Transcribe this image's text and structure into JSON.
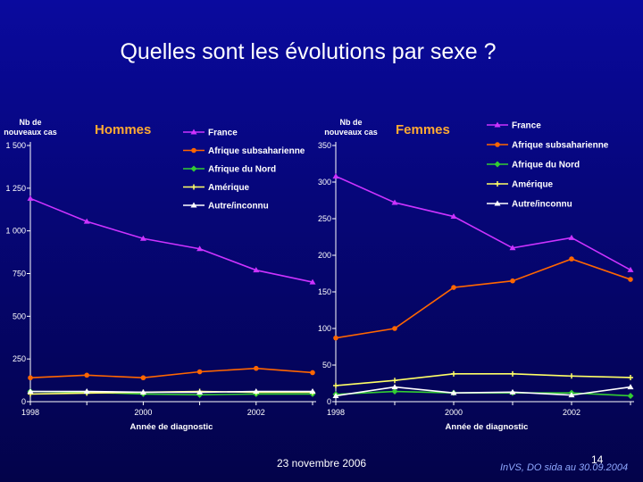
{
  "slide": {
    "title": "Quelles sont les évolutions par sexe ?",
    "footer_date": "23 novembre 2006",
    "page_number": "14",
    "source": "InVS, DO sida au 30.09.2004"
  },
  "chart_data": [
    {
      "type": "line",
      "title": "Hommes",
      "ylabel": "Nb de nouveaux cas",
      "xlabel": "Année de diagnostic",
      "x": [
        1998,
        1999,
        2000,
        2001,
        2002,
        2003
      ],
      "x_tick_labels": [
        "1998",
        "2000",
        "2002"
      ],
      "x_tick_values": [
        1998,
        2000,
        2002
      ],
      "ylim": [
        0,
        1500
      ],
      "y_ticks": [
        0,
        250,
        500,
        750,
        1000,
        1250,
        1500
      ],
      "y_tick_labels": [
        "0",
        "250",
        "500",
        "750",
        "1 000",
        "1 250",
        "1 500"
      ],
      "grid": false,
      "legend_position": "right",
      "series": [
        {
          "name": "France",
          "color": "#cc33ff",
          "values": [
            1190,
            1055,
            955,
            895,
            770,
            700
          ]
        },
        {
          "name": "Afrique subsaharienne",
          "color": "#ff6600",
          "values": [
            140,
            155,
            140,
            175,
            195,
            170
          ]
        },
        {
          "name": "Afrique du Nord",
          "color": "#33cc33",
          "values": [
            60,
            55,
            45,
            40,
            45,
            45
          ]
        },
        {
          "name": "Amérique",
          "color": "#ffff66",
          "values": [
            45,
            50,
            55,
            60,
            55,
            55
          ]
        },
        {
          "name": "Autre/inconnu",
          "color": "#ffffff",
          "values": [
            60,
            60,
            55,
            55,
            60,
            60
          ]
        }
      ]
    },
    {
      "type": "line",
      "title": "Femmes",
      "ylabel": "Nb de nouveaux cas",
      "xlabel": "Année de diagnostic",
      "x": [
        1998,
        1999,
        2000,
        2001,
        2002,
        2003
      ],
      "x_tick_labels": [
        "1998",
        "2000",
        "2002"
      ],
      "x_tick_values": [
        1998,
        2000,
        2002
      ],
      "ylim": [
        0,
        350
      ],
      "y_ticks": [
        0,
        50,
        100,
        150,
        200,
        250,
        300,
        350
      ],
      "y_tick_labels": [
        "0",
        "50",
        "100",
        "150",
        "200",
        "250",
        "300",
        "350"
      ],
      "grid": false,
      "legend_position": "right",
      "series": [
        {
          "name": "France",
          "color": "#cc33ff",
          "values": [
            308,
            272,
            253,
            210,
            224,
            180
          ]
        },
        {
          "name": "Afrique subsaharienne",
          "color": "#ff6600",
          "values": [
            87,
            100,
            156,
            165,
            195,
            167
          ]
        },
        {
          "name": "Afrique du Nord",
          "color": "#33cc33",
          "values": [
            10,
            14,
            12,
            12,
            12,
            8
          ]
        },
        {
          "name": "Amérique",
          "color": "#ffff66",
          "values": [
            22,
            29,
            38,
            38,
            35,
            33
          ]
        },
        {
          "name": "Autre/inconnu",
          "color": "#ffffff",
          "values": [
            8,
            20,
            12,
            13,
            9,
            20
          ]
        }
      ]
    }
  ]
}
